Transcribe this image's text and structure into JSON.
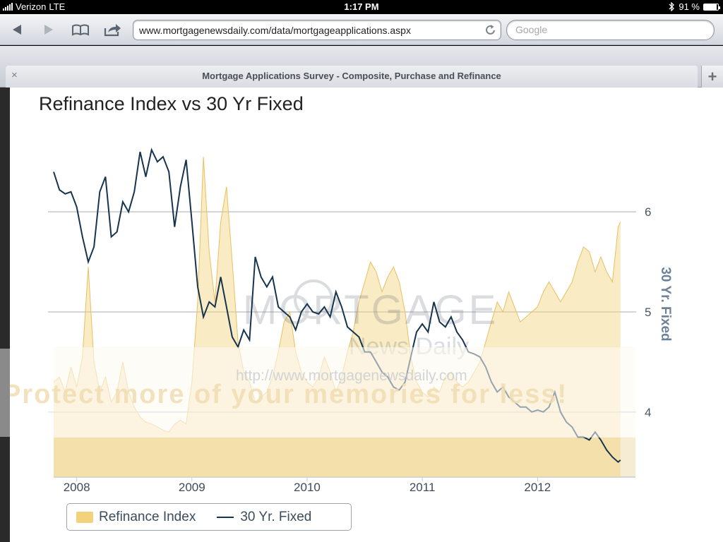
{
  "status_bar": {
    "carrier": "Verizon",
    "network": "LTE",
    "time": "1:17 PM",
    "battery": "91 %",
    "battery_level": 0.91,
    "icons": [
      "signal-icon",
      "bluetooth-icon",
      "battery-icon"
    ]
  },
  "toolbar": {
    "url": "www.mortgagenewsdaily.com/data/mortgageapplications.aspx",
    "search_placeholder": "Google",
    "buttons": [
      "back-icon",
      "forward-icon",
      "bookmarks-icon",
      "share-icon",
      "reload-icon"
    ]
  },
  "tab": {
    "title": "Mortgage Applications Survey - Composite, Purchase and Refinance",
    "close_glyph": "×",
    "new_tab_glyph": "+"
  },
  "chart": {
    "title": "Refinance Index vs 30 Yr Fixed",
    "watermark_logo": "MORTGAGE",
    "watermark_logo_sub": "News Daily",
    "watermark_url": "http://www.mortgagenewsdaily.com",
    "watermark_protect": "Protect more of your memories for less!",
    "legend": {
      "series1": "Refinance Index",
      "series2": "30 Yr. Fixed"
    },
    "colors": {
      "refi_fill": "#f2d27a",
      "rate_line": "#17344f",
      "axis_label": "#6d8197"
    }
  },
  "chart_data": {
    "type": "line",
    "title": "Refinance Index vs 30 Yr Fixed",
    "xlabel": "",
    "ylabel": "30 Yr. Fixed",
    "x_ticks": [
      "2008",
      "2009",
      "2010",
      "2011",
      "2012"
    ],
    "y_ticks": [
      4,
      5,
      6
    ],
    "ylim": [
      3.35,
      6.65
    ],
    "xlim": [
      2007.8,
      2012.85
    ],
    "grid": "horizontal",
    "legend_placement": "bottom-left",
    "series": [
      {
        "name": "30 Yr. Fixed",
        "type": "line",
        "points": [
          [
            2007.8,
            6.4
          ],
          [
            2007.85,
            6.22
          ],
          [
            2007.9,
            6.18
          ],
          [
            2007.95,
            6.2
          ],
          [
            2008.0,
            6.05
          ],
          [
            2008.05,
            5.75
          ],
          [
            2008.1,
            5.5
          ],
          [
            2008.15,
            5.65
          ],
          [
            2008.2,
            6.2
          ],
          [
            2008.25,
            6.35
          ],
          [
            2008.3,
            5.75
          ],
          [
            2008.35,
            5.8
          ],
          [
            2008.4,
            6.1
          ],
          [
            2008.45,
            6.0
          ],
          [
            2008.5,
            6.2
          ],
          [
            2008.55,
            6.6
          ],
          [
            2008.6,
            6.35
          ],
          [
            2008.65,
            6.62
          ],
          [
            2008.7,
            6.5
          ],
          [
            2008.75,
            6.55
          ],
          [
            2008.8,
            6.4
          ],
          [
            2008.85,
            5.85
          ],
          [
            2008.9,
            6.25
          ],
          [
            2008.95,
            6.52
          ],
          [
            2009.0,
            5.9
          ],
          [
            2009.05,
            5.25
          ],
          [
            2009.1,
            4.95
          ],
          [
            2009.15,
            5.1
          ],
          [
            2009.2,
            5.05
          ],
          [
            2009.25,
            5.35
          ],
          [
            2009.3,
            5.05
          ],
          [
            2009.35,
            4.75
          ],
          [
            2009.4,
            4.65
          ],
          [
            2009.45,
            4.82
          ],
          [
            2009.5,
            4.72
          ],
          [
            2009.55,
            5.55
          ],
          [
            2009.6,
            5.35
          ],
          [
            2009.65,
            5.25
          ],
          [
            2009.7,
            5.35
          ],
          [
            2009.75,
            5.05
          ],
          [
            2009.8,
            5.0
          ],
          [
            2009.85,
            4.95
          ],
          [
            2009.9,
            4.82
          ],
          [
            2009.95,
            5.0
          ],
          [
            2010.0,
            5.08
          ],
          [
            2010.05,
            5.0
          ],
          [
            2010.1,
            4.98
          ],
          [
            2010.15,
            5.05
          ],
          [
            2010.2,
            4.95
          ],
          [
            2010.25,
            5.2
          ],
          [
            2010.3,
            5.05
          ],
          [
            2010.35,
            4.85
          ],
          [
            2010.4,
            4.8
          ],
          [
            2010.45,
            4.75
          ],
          [
            2010.5,
            4.6
          ],
          [
            2010.55,
            4.6
          ],
          [
            2010.6,
            4.5
          ],
          [
            2010.65,
            4.4
          ],
          [
            2010.7,
            4.35
          ],
          [
            2010.75,
            4.25
          ],
          [
            2010.8,
            4.22
          ],
          [
            2010.85,
            4.3
          ],
          [
            2010.9,
            4.55
          ],
          [
            2010.95,
            4.8
          ],
          [
            2011.0,
            4.88
          ],
          [
            2011.05,
            4.8
          ],
          [
            2011.1,
            5.1
          ],
          [
            2011.15,
            4.9
          ],
          [
            2011.2,
            4.85
          ],
          [
            2011.25,
            4.95
          ],
          [
            2011.3,
            4.8
          ],
          [
            2011.35,
            4.72
          ],
          [
            2011.4,
            4.6
          ],
          [
            2011.45,
            4.58
          ],
          [
            2011.5,
            4.55
          ],
          [
            2011.55,
            4.45
          ],
          [
            2011.6,
            4.3
          ],
          [
            2011.65,
            4.2
          ],
          [
            2011.7,
            4.25
          ],
          [
            2011.75,
            4.15
          ],
          [
            2011.8,
            4.1
          ],
          [
            2011.85,
            4.05
          ],
          [
            2011.9,
            4.05
          ],
          [
            2011.95,
            4.0
          ],
          [
            2012.0,
            4.02
          ],
          [
            2012.05,
            4.0
          ],
          [
            2012.1,
            4.05
          ],
          [
            2012.15,
            4.2
          ],
          [
            2012.2,
            4.0
          ],
          [
            2012.25,
            3.9
          ],
          [
            2012.3,
            3.85
          ],
          [
            2012.35,
            3.75
          ],
          [
            2012.4,
            3.75
          ],
          [
            2012.45,
            3.72
          ],
          [
            2012.5,
            3.8
          ],
          [
            2012.55,
            3.72
          ],
          [
            2012.6,
            3.62
          ],
          [
            2012.65,
            3.55
          ],
          [
            2012.7,
            3.5
          ],
          [
            2012.72,
            3.52
          ]
        ]
      },
      {
        "name": "Refinance Index",
        "type": "area",
        "points": [
          [
            2007.8,
            4.3
          ],
          [
            2007.85,
            4.35
          ],
          [
            2007.9,
            4.2
          ],
          [
            2007.95,
            4.45
          ],
          [
            2008.0,
            4.25
          ],
          [
            2008.05,
            4.55
          ],
          [
            2008.1,
            5.45
          ],
          [
            2008.15,
            4.5
          ],
          [
            2008.2,
            4.2
          ],
          [
            2008.25,
            4.35
          ],
          [
            2008.3,
            4.1
          ],
          [
            2008.35,
            4.2
          ],
          [
            2008.4,
            4.5
          ],
          [
            2008.45,
            4.2
          ],
          [
            2008.5,
            4.05
          ],
          [
            2008.55,
            3.95
          ],
          [
            2008.6,
            3.9
          ],
          [
            2008.65,
            3.88
          ],
          [
            2008.7,
            3.85
          ],
          [
            2008.75,
            3.82
          ],
          [
            2008.8,
            3.8
          ],
          [
            2008.85,
            3.88
          ],
          [
            2008.9,
            3.92
          ],
          [
            2008.95,
            3.88
          ],
          [
            2009.0,
            4.3
          ],
          [
            2009.05,
            5.1
          ],
          [
            2009.1,
            6.55
          ],
          [
            2009.15,
            5.6
          ],
          [
            2009.2,
            5.1
          ],
          [
            2009.25,
            5.9
          ],
          [
            2009.3,
            6.25
          ],
          [
            2009.35,
            5.5
          ],
          [
            2009.4,
            4.7
          ],
          [
            2009.45,
            4.4
          ],
          [
            2009.5,
            4.3
          ],
          [
            2009.55,
            4.1
          ],
          [
            2009.6,
            4.15
          ],
          [
            2009.65,
            4.2
          ],
          [
            2009.7,
            4.35
          ],
          [
            2009.75,
            4.6
          ],
          [
            2009.8,
            4.9
          ],
          [
            2009.85,
            5.0
          ],
          [
            2009.9,
            4.6
          ],
          [
            2009.95,
            4.4
          ],
          [
            2010.0,
            4.3
          ],
          [
            2010.05,
            4.25
          ],
          [
            2010.1,
            4.35
          ],
          [
            2010.15,
            4.55
          ],
          [
            2010.2,
            4.4
          ],
          [
            2010.25,
            4.2
          ],
          [
            2010.3,
            4.35
          ],
          [
            2010.35,
            4.6
          ],
          [
            2010.4,
            4.8
          ],
          [
            2010.45,
            5.1
          ],
          [
            2010.5,
            5.3
          ],
          [
            2010.55,
            5.5
          ],
          [
            2010.6,
            5.4
          ],
          [
            2010.65,
            5.2
          ],
          [
            2010.7,
            5.35
          ],
          [
            2010.75,
            5.45
          ],
          [
            2010.8,
            5.3
          ],
          [
            2010.85,
            5.0
          ],
          [
            2010.9,
            4.55
          ],
          [
            2010.95,
            4.3
          ],
          [
            2011.0,
            4.2
          ],
          [
            2011.05,
            4.15
          ],
          [
            2011.1,
            4.25
          ],
          [
            2011.15,
            4.2
          ],
          [
            2011.2,
            4.35
          ],
          [
            2011.25,
            4.4
          ],
          [
            2011.3,
            4.3
          ],
          [
            2011.35,
            4.25
          ],
          [
            2011.4,
            4.3
          ],
          [
            2011.45,
            4.4
          ],
          [
            2011.5,
            4.5
          ],
          [
            2011.55,
            4.7
          ],
          [
            2011.6,
            4.9
          ],
          [
            2011.65,
            5.1
          ],
          [
            2011.7,
            5.0
          ],
          [
            2011.75,
            5.2
          ],
          [
            2011.8,
            5.05
          ],
          [
            2011.85,
            4.9
          ],
          [
            2011.9,
            4.95
          ],
          [
            2011.95,
            5.0
          ],
          [
            2012.0,
            5.05
          ],
          [
            2012.05,
            5.2
          ],
          [
            2012.1,
            5.3
          ],
          [
            2012.15,
            5.2
          ],
          [
            2012.2,
            5.1
          ],
          [
            2012.25,
            5.2
          ],
          [
            2012.3,
            5.3
          ],
          [
            2012.35,
            5.5
          ],
          [
            2012.4,
            5.65
          ],
          [
            2012.45,
            5.6
          ],
          [
            2012.5,
            5.4
          ],
          [
            2012.55,
            5.55
          ],
          [
            2012.6,
            5.4
          ],
          [
            2012.65,
            5.3
          ],
          [
            2012.7,
            5.85
          ],
          [
            2012.72,
            5.9
          ]
        ]
      }
    ]
  }
}
